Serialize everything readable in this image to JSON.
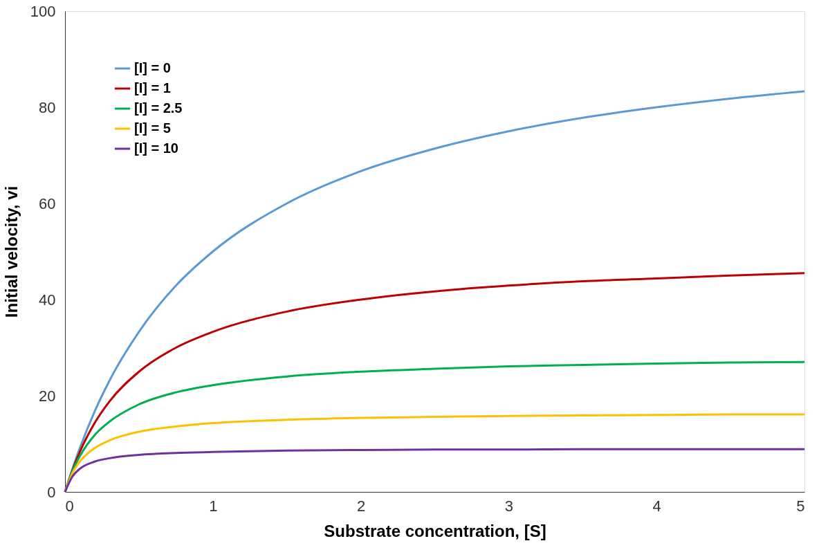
{
  "chart_data": {
    "type": "line",
    "xlabel": "Substrate concentration, [S]",
    "ylabel": "Initial velocity, vi",
    "x": [
      0,
      0.05,
      0.1,
      0.2,
      0.3,
      0.5,
      0.75,
      1,
      1.5,
      2,
      2.5,
      3,
      3.5,
      4,
      4.5,
      5
    ],
    "series": [
      {
        "name": "[I] = 0",
        "color": "#5b9bd5",
        "values": [
          0,
          4.8,
          9.1,
          16.7,
          23.1,
          33.3,
          42.9,
          50,
          60,
          66.7,
          71.4,
          75,
          77.8,
          80,
          81.8,
          83.3
        ]
      },
      {
        "name": "[I] = 1",
        "color": "#c00000",
        "values": [
          0,
          4.5,
          8.3,
          14.3,
          18.8,
          25,
          30,
          33.3,
          37.5,
          40,
          41.7,
          42.9,
          43.8,
          44.4,
          45,
          45.5
        ]
      },
      {
        "name": "[I] = 2.5",
        "color": "#00b050",
        "values": [
          0,
          4.3,
          7.4,
          11.8,
          14.6,
          18.2,
          20.7,
          22.2,
          24,
          25,
          25.6,
          26.1,
          26.4,
          26.7,
          26.9,
          27
        ]
      },
      {
        "name": "[I] = 5",
        "color": "#ffc000",
        "values": [
          0,
          3.9,
          6.3,
          9.1,
          10.7,
          12.5,
          13.6,
          14.3,
          15,
          15.4,
          15.6,
          15.8,
          15.9,
          16,
          16.1,
          16.1
        ]
      },
      {
        "name": "[I] = 10",
        "color": "#7030a0",
        "values": [
          0,
          3.2,
          4.8,
          6.3,
          7,
          7.7,
          8.1,
          8.3,
          8.6,
          8.7,
          8.8,
          8.8,
          8.9,
          8.9,
          8.9,
          8.9
        ]
      }
    ],
    "xlim": [
      0,
      5
    ],
    "xticks": [
      0,
      1,
      2,
      3,
      4,
      5
    ],
    "ylim": [
      0,
      100
    ],
    "yticks": [
      0,
      20,
      40,
      60,
      80,
      100
    ],
    "grid": false,
    "legend": "top left",
    "marker": "none",
    "line_style": "solid"
  }
}
